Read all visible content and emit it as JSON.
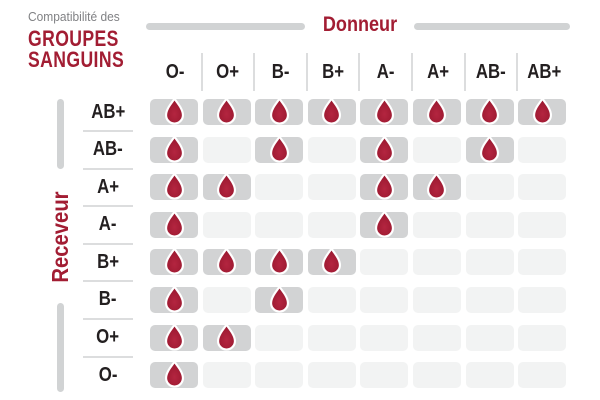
{
  "title": {
    "eyebrow": "Compatibilité des",
    "line1": "GROUPES",
    "line2": "SANGUINS"
  },
  "axes": {
    "donor_label": "Donneur",
    "receiver_label": "Receveur"
  },
  "colors": {
    "accent_red": "#A21D33",
    "text_dark": "#231F20",
    "text_gray": "#808184",
    "bar_gray": "#D1D3D4",
    "line_gray": "#DCDDDE",
    "cell_filled": "#D2D3D4",
    "cell_empty": "#F2F3F3",
    "drop_core": "#B42540",
    "drop_main": "#A01B33",
    "drop_edge": "#8E1529",
    "drop_outline": "#FFFFFF"
  },
  "chart_data": {
    "type": "heatmap",
    "title": "Compatibilité des groupes sanguins",
    "xlabel": "Donneur",
    "ylabel": "Receveur",
    "columns": [
      "O-",
      "O+",
      "B-",
      "B+",
      "A-",
      "A+",
      "AB-",
      "AB+"
    ],
    "rows": [
      "AB+",
      "AB-",
      "A+",
      "A-",
      "B+",
      "B-",
      "O+",
      "O-"
    ],
    "matrix": [
      [
        1,
        1,
        1,
        1,
        1,
        1,
        1,
        1
      ],
      [
        1,
        0,
        1,
        0,
        1,
        0,
        1,
        0
      ],
      [
        1,
        1,
        0,
        0,
        1,
        1,
        0,
        0
      ],
      [
        1,
        0,
        0,
        0,
        1,
        0,
        0,
        0
      ],
      [
        1,
        1,
        1,
        1,
        0,
        0,
        0,
        0
      ],
      [
        1,
        0,
        1,
        0,
        0,
        0,
        0,
        0
      ],
      [
        1,
        1,
        0,
        0,
        0,
        0,
        0,
        0
      ],
      [
        1,
        0,
        0,
        0,
        0,
        0,
        0,
        0
      ]
    ],
    "marker_icon": "blood-drop-icon",
    "marker_meaning": "compatible",
    "legend_position": "none",
    "grid": false
  }
}
